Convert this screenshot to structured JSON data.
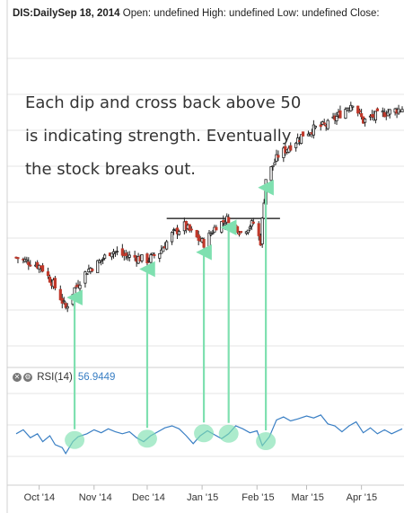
{
  "header": {
    "symbol": "DIS:Daily",
    "date": "Sep 18, 2014",
    "ohlc_text": "Open: undefined High: undefined Low: undefined Close:"
  },
  "annotation": {
    "lines": [
      "Each dip and cross back above 50",
      "is indicating strength. Eventually",
      "the stock breaks out."
    ]
  },
  "rsi": {
    "label": "RSI(14)",
    "value": "56.9449",
    "line_color": "#3a7fc4"
  },
  "colors": {
    "up": "#333333",
    "down": "#c0392b",
    "arrow": "#7fe0b0",
    "grid": "#e6e6e6",
    "resistance": "#444444"
  },
  "chart_data": [
    {
      "type": "candlestick",
      "title": "DIS:Daily",
      "x_ticks": [
        "Oct '14",
        "Nov '14",
        "Dec '14",
        "Jan '15",
        "Feb '15",
        "Mar '15",
        "Apr '15"
      ],
      "x_start": "2014-09-18",
      "x_end": "2015-04-24",
      "close_series": [
        [
          "2014-09-18",
          89.0
        ],
        [
          "2014-09-25",
          88.5
        ],
        [
          "2014-10-02",
          88.0
        ],
        [
          "2014-10-09",
          86.0
        ],
        [
          "2014-10-16",
          83.3
        ],
        [
          "2014-10-21",
          85.5
        ],
        [
          "2014-10-28",
          87.5
        ],
        [
          "2014-11-04",
          88.5
        ],
        [
          "2014-11-11",
          89.8
        ],
        [
          "2014-11-18",
          89.2
        ],
        [
          "2014-11-25",
          89.0
        ],
        [
          "2014-12-01",
          88.7
        ],
        [
          "2014-12-08",
          89.6
        ],
        [
          "2014-12-15",
          91.6
        ],
        [
          "2014-12-22",
          92.6
        ],
        [
          "2014-12-29",
          91.2
        ],
        [
          "2015-01-02",
          90.6
        ],
        [
          "2015-01-09",
          92.6
        ],
        [
          "2015-01-16",
          93.4
        ],
        [
          "2015-01-23",
          91.9
        ],
        [
          "2015-01-30",
          92.9
        ],
        [
          "2015-02-03",
          90.8
        ],
        [
          "2015-02-06",
          97.9
        ],
        [
          "2015-02-13",
          100.5
        ],
        [
          "2015-02-20",
          101.6
        ],
        [
          "2015-02-27",
          102.9
        ],
        [
          "2015-03-06",
          103.6
        ],
        [
          "2015-03-13",
          104.0
        ],
        [
          "2015-03-20",
          105.2
        ],
        [
          "2015-03-27",
          106.5
        ],
        [
          "2015-04-02",
          104.4
        ],
        [
          "2015-04-09",
          105.0
        ],
        [
          "2015-04-16",
          105.4
        ],
        [
          "2015-04-24",
          105.8
        ]
      ],
      "resistance_level": 93.4,
      "resistance_range": [
        "2014-12-12",
        "2015-02-14"
      ],
      "annotations": [
        "Each dip and cross back above 50",
        "is indicating strength. Eventually",
        "the stock breaks out."
      ]
    },
    {
      "type": "line",
      "title": "RSI(14)",
      "ylim": [
        0,
        100
      ],
      "series": [
        {
          "name": "RSI(14)",
          "values": [
            [
              "2014-09-18",
              52
            ],
            [
              "2014-09-22",
              56
            ],
            [
              "2014-09-26",
              48
            ],
            [
              "2014-09-30",
              52
            ],
            [
              "2014-10-03",
              44
            ],
            [
              "2014-10-07",
              50
            ],
            [
              "2014-10-10",
              41
            ],
            [
              "2014-10-14",
              38
            ],
            [
              "2014-10-16",
              32
            ],
            [
              "2014-10-20",
              44
            ],
            [
              "2014-10-23",
              49
            ],
            [
              "2014-10-28",
              52
            ],
            [
              "2014-11-01",
              56
            ],
            [
              "2014-11-05",
              53
            ],
            [
              "2014-11-09",
              57
            ],
            [
              "2014-11-13",
              54
            ],
            [
              "2014-11-17",
              52
            ],
            [
              "2014-11-21",
              54
            ],
            [
              "2014-11-25",
              48
            ],
            [
              "2014-11-29",
              44
            ],
            [
              "2014-12-03",
              50
            ],
            [
              "2014-12-07",
              54
            ],
            [
              "2014-12-11",
              58
            ],
            [
              "2014-12-15",
              60
            ],
            [
              "2014-12-19",
              57
            ],
            [
              "2014-12-23",
              50
            ],
            [
              "2014-12-27",
              42
            ],
            [
              "2014-12-31",
              50
            ],
            [
              "2015-01-04",
              55
            ],
            [
              "2015-01-08",
              51
            ],
            [
              "2015-01-12",
              47
            ],
            [
              "2015-01-16",
              52
            ],
            [
              "2015-01-20",
              60
            ],
            [
              "2015-01-24",
              57
            ],
            [
              "2015-01-28",
              53
            ],
            [
              "2015-02-01",
              55
            ],
            [
              "2015-02-04",
              40
            ],
            [
              "2015-02-08",
              49
            ],
            [
              "2015-02-12",
              66
            ],
            [
              "2015-02-16",
              69
            ],
            [
              "2015-02-20",
              65
            ],
            [
              "2015-02-24",
              67
            ],
            [
              "2015-03-01",
              70
            ],
            [
              "2015-03-05",
              68
            ],
            [
              "2015-03-09",
              71
            ],
            [
              "2015-03-13",
              62
            ],
            [
              "2015-03-17",
              60
            ],
            [
              "2015-03-21",
              54
            ],
            [
              "2015-03-25",
              60
            ],
            [
              "2015-03-29",
              64
            ],
            [
              "2015-04-02",
              53
            ],
            [
              "2015-04-06",
              58
            ],
            [
              "2015-04-10",
              52
            ],
            [
              "2015-04-14",
              56
            ],
            [
              "2015-04-18",
              52
            ],
            [
              "2015-04-24",
              57
            ]
          ]
        }
      ],
      "dips": [
        "2014-10-21",
        "2014-12-01",
        "2015-01-02",
        "2015-01-16",
        "2015-02-06"
      ]
    }
  ]
}
